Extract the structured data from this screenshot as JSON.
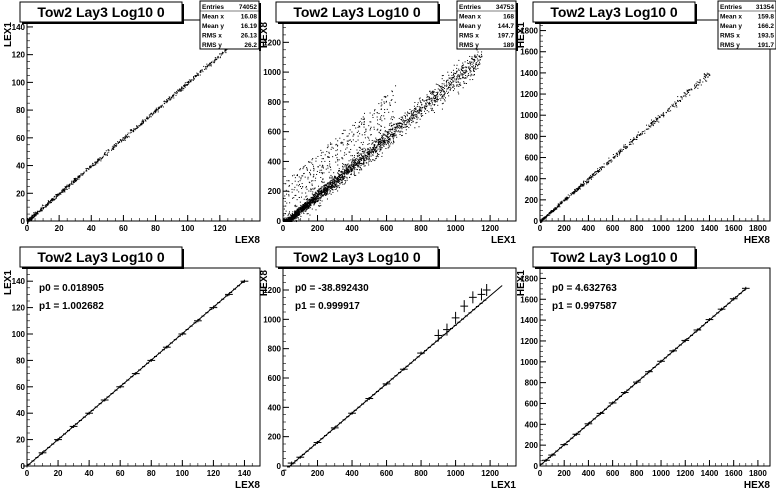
{
  "panels": [
    {
      "title": "Tow2 Lay3 Log10 0",
      "xlabel": "LEX8",
      "ylabel": "LEX1",
      "xlim": [
        0,
        145
      ],
      "ylim": [
        0,
        145
      ],
      "xticks": [
        0,
        20,
        40,
        60,
        80,
        100,
        120
      ],
      "yticks": [
        0,
        20,
        40,
        60,
        80,
        100,
        120,
        140
      ],
      "stats": [
        [
          "Entries",
          "74052"
        ],
        [
          "Mean x",
          "16.08"
        ],
        [
          "Mean y",
          "16.19"
        ],
        [
          "RMS x",
          "26.13"
        ],
        [
          "RMS y",
          "26.2"
        ]
      ],
      "fit": null
    },
    {
      "title": "Tow2 Lay3 Log10 0",
      "xlabel": "LEX1",
      "ylabel": "HEX8",
      "xlim": [
        0,
        1350
      ],
      "ylim": [
        0,
        1350
      ],
      "xticks": [
        0,
        200,
        400,
        600,
        800,
        1000,
        1200
      ],
      "yticks": [
        0,
        200,
        400,
        600,
        800,
        1000,
        1200
      ],
      "stats": [
        [
          "Entries",
          "34753"
        ],
        [
          "Mean x",
          "168"
        ],
        [
          "Mean y",
          "144.7"
        ],
        [
          "RMS x",
          "197.7"
        ],
        [
          "RMS y",
          "189"
        ]
      ],
      "fit": null
    },
    {
      "title": "Tow2 Lay3 Log10 0",
      "xlabel": "HEX8",
      "ylabel": "HEX1",
      "xlim": [
        0,
        1900
      ],
      "ylim": [
        0,
        1900
      ],
      "xticks": [
        0,
        200,
        400,
        600,
        800,
        1000,
        1200,
        1400,
        1600,
        1800
      ],
      "yticks": [
        0,
        200,
        400,
        600,
        800,
        1000,
        1200,
        1400,
        1600,
        1800
      ],
      "stats": [
        [
          "Entries",
          "31354"
        ],
        [
          "Mean x",
          "159.8"
        ],
        [
          "Mean y",
          "166.2"
        ],
        [
          "RMS x",
          "193.5"
        ],
        [
          "RMS y",
          "191.7"
        ]
      ],
      "fit": null
    },
    {
      "title": "Tow2 Lay3 Log10 0",
      "xlabel": "LEX8",
      "ylabel": "LEX1",
      "xlim": [
        0,
        150
      ],
      "ylim": [
        0,
        150
      ],
      "xticks": [
        0,
        20,
        40,
        60,
        80,
        100,
        120,
        140
      ],
      "yticks": [
        0,
        20,
        40,
        60,
        80,
        100,
        120,
        140
      ],
      "stats": null,
      "fit": {
        "p0": "p0 = 0.018905",
        "p1": "p1 = 1.002682"
      }
    },
    {
      "title": "Tow2 Lay3 Log10 0",
      "xlabel": "LEX1",
      "ylabel": "HEX8",
      "xlim": [
        0,
        1350
      ],
      "ylim": [
        0,
        1350
      ],
      "xticks": [
        0,
        200,
        400,
        600,
        800,
        1000,
        1200
      ],
      "yticks": [
        0,
        200,
        400,
        600,
        800,
        1000,
        1200
      ],
      "stats": null,
      "fit": {
        "p0": "p0 = -38.892430",
        "p1": "p1 = 0.999917"
      }
    },
    {
      "title": "Tow2 Lay3 Log10 0",
      "xlabel": "HEX8",
      "ylabel": "HEX1",
      "xlim": [
        0,
        1900
      ],
      "ylim": [
        0,
        1900
      ],
      "xticks": [
        0,
        200,
        400,
        600,
        800,
        1000,
        1200,
        1400,
        1600,
        1800
      ],
      "yticks": [
        0,
        200,
        400,
        600,
        800,
        1000,
        1200,
        1400,
        1600,
        1800
      ],
      "stats": null,
      "fit": {
        "p0": "p0 = 4.632763",
        "p1": "p1 = 0.997587"
      }
    }
  ],
  "chart_data": [
    {
      "type": "scatter",
      "title": "Tow2 Lay3 Log10 0",
      "xlabel": "LEX8",
      "ylabel": "LEX1",
      "xlim": [
        0,
        145
      ],
      "ylim": [
        0,
        145
      ],
      "series": [
        {
          "x": [
            0,
            5,
            10,
            20,
            30,
            40,
            50,
            60,
            70,
            80,
            90,
            100,
            110,
            120,
            130,
            140
          ],
          "y": [
            0,
            5,
            10,
            20,
            30,
            40,
            50,
            60,
            70,
            80,
            90,
            100,
            110,
            120,
            130,
            140
          ]
        }
      ]
    },
    {
      "type": "scatter",
      "title": "Tow2 Lay3 Log10 0",
      "xlabel": "LEX1",
      "ylabel": "HEX8",
      "xlim": [
        0,
        1350
      ],
      "ylim": [
        0,
        1350
      ],
      "series": [
        {
          "x": [
            0,
            50,
            100,
            200,
            300,
            400,
            500,
            600,
            700,
            800,
            900,
            1000,
            1100,
            1200
          ],
          "y": [
            0,
            20,
            60,
            150,
            250,
            350,
            470,
            570,
            670,
            780,
            880,
            980,
            1080,
            1180
          ]
        }
      ]
    },
    {
      "type": "scatter",
      "title": "Tow2 Lay3 Log10 0",
      "xlabel": "HEX8",
      "ylabel": "HEX1",
      "xlim": [
        0,
        1900
      ],
      "ylim": [
        0,
        1900
      ],
      "series": [
        {
          "x": [
            0,
            50,
            100,
            200,
            300,
            400,
            500,
            600,
            700,
            800,
            900,
            1000,
            1100,
            1200,
            1300,
            1400
          ],
          "y": [
            0,
            50,
            100,
            200,
            300,
            400,
            500,
            600,
            700,
            800,
            900,
            1000,
            1100,
            1200,
            1300,
            1400
          ]
        }
      ]
    },
    {
      "type": "line",
      "title": "Tow2 Lay3 Log10 0",
      "xlabel": "LEX8",
      "ylabel": "LEX1",
      "xlim": [
        0,
        150
      ],
      "ylim": [
        0,
        150
      ],
      "series": [
        {
          "x": [
            0,
            10,
            20,
            30,
            40,
            50,
            60,
            70,
            80,
            90,
            100,
            110,
            120,
            130,
            140
          ],
          "y": [
            0,
            10,
            20,
            30,
            40,
            50,
            60,
            70,
            80,
            90,
            100,
            110,
            120,
            130,
            140
          ]
        }
      ],
      "fit": {
        "p0": 0.018905,
        "p1": 1.002682
      }
    },
    {
      "type": "line",
      "title": "Tow2 Lay3 Log10 0",
      "xlabel": "LEX1",
      "ylabel": "HEX8",
      "xlim": [
        0,
        1350
      ],
      "ylim": [
        0,
        1350
      ],
      "series": [
        {
          "x": [
            50,
            100,
            200,
            300,
            400,
            500,
            600,
            700,
            800,
            900,
            950,
            1000,
            1050,
            1100,
            1150,
            1180
          ],
          "y": [
            20,
            60,
            160,
            260,
            360,
            460,
            560,
            660,
            770,
            890,
            930,
            1010,
            1090,
            1150,
            1170,
            1200
          ]
        }
      ],
      "fit": {
        "p0": -38.89243,
        "p1": 0.999917
      }
    },
    {
      "type": "line",
      "title": "Tow2 Lay3 Log10 0",
      "xlabel": "HEX8",
      "ylabel": "HEX1",
      "xlim": [
        0,
        1900
      ],
      "ylim": [
        0,
        1900
      ],
      "series": [
        {
          "x": [
            50,
            100,
            200,
            300,
            400,
            500,
            600,
            700,
            800,
            900,
            1000,
            1100,
            1200,
            1300,
            1400,
            1500,
            1600,
            1700
          ],
          "y": [
            55,
            105,
            205,
            305,
            405,
            505,
            605,
            705,
            805,
            905,
            1005,
            1105,
            1205,
            1305,
            1405,
            1505,
            1605,
            1705
          ]
        }
      ],
      "fit": {
        "p0": 4.632763,
        "p1": 0.997587
      }
    }
  ]
}
